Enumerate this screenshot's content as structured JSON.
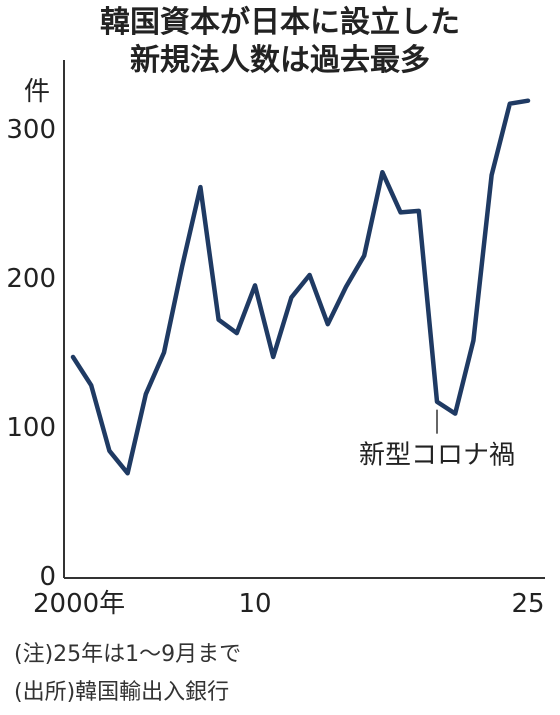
{
  "title": {
    "line1": "韓国資本が日本に設立した",
    "line2": "新規法人数は過去最多"
  },
  "notes": {
    "note": "(注)25年は1〜9月まで",
    "source": "(出所)韓国輸出入銀行"
  },
  "colors": {
    "series": "#1f3a63",
    "axis": "#333333",
    "text": "#222222"
  },
  "chart_data": {
    "type": "line",
    "title": "韓国資本が日本に設立した新規法人数は過去最多",
    "ylabel": "件",
    "xlabel": "",
    "ylim": [
      0,
      330
    ],
    "yticks": [
      0,
      100,
      200,
      300
    ],
    "x_tick_labels": [
      {
        "x": 2000,
        "label": "2000年"
      },
      {
        "x": 2010,
        "label": "10"
      },
      {
        "x": 2025,
        "label": "25"
      }
    ],
    "grid": false,
    "legend": "none",
    "series": [
      {
        "x": [
          2000,
          2001,
          2002,
          2003,
          2004,
          2005,
          2006,
          2007,
          2008,
          2009,
          2010,
          2011,
          2012,
          2013,
          2014,
          2015,
          2016,
          2017,
          2018,
          2019,
          2020,
          2021,
          2022,
          2023,
          2024,
          2025
        ],
        "values": [
          147,
          128,
          84,
          69,
          122,
          150,
          208,
          261,
          172,
          163,
          195,
          147,
          187,
          202,
          169,
          194,
          215,
          271,
          244,
          245,
          117,
          109,
          158,
          269,
          317,
          319
        ]
      }
    ],
    "annotations": [
      {
        "text": "新型コロナ禍",
        "x": 2020,
        "y": 117
      }
    ]
  }
}
